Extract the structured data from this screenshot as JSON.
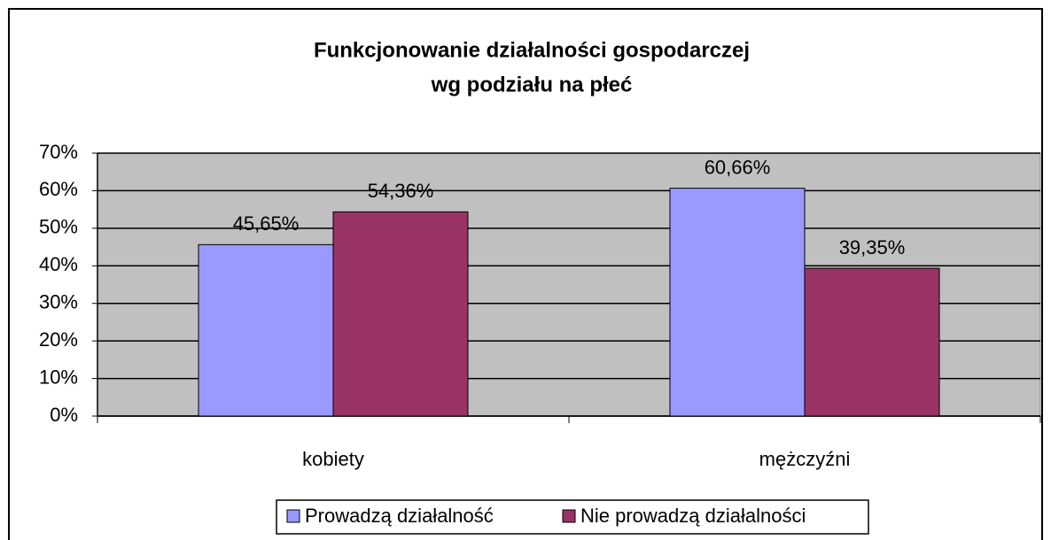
{
  "chart_data": {
    "type": "bar",
    "title": [
      "Funkcjonowanie działalności gospodarczej",
      "wg podziału na płeć"
    ],
    "categories": [
      "kobiety",
      "mężczyźni"
    ],
    "series": [
      {
        "name": "Prowadzą działalność",
        "color": "#9999ff",
        "values": [
          45.65,
          60.66
        ],
        "value_labels": [
          "45,65%",
          "60,66%"
        ]
      },
      {
        "name": "Nie prowadzą działalności",
        "color": "#993366",
        "values": [
          54.36,
          39.35
        ],
        "value_labels": [
          "54,36%",
          "39,35%"
        ]
      }
    ],
    "ylim": [
      0,
      70
    ],
    "yticks": [
      {
        "value": 0,
        "label": "0%"
      },
      {
        "value": 10,
        "label": "10%"
      },
      {
        "value": 20,
        "label": "20%"
      },
      {
        "value": 30,
        "label": "30%"
      },
      {
        "value": 40,
        "label": "40%"
      },
      {
        "value": 50,
        "label": "50%"
      },
      {
        "value": 60,
        "label": "60%"
      },
      {
        "value": 70,
        "label": "70%"
      }
    ],
    "grid": true,
    "legend": "bottom",
    "plot_background": "#c0c0c0"
  }
}
